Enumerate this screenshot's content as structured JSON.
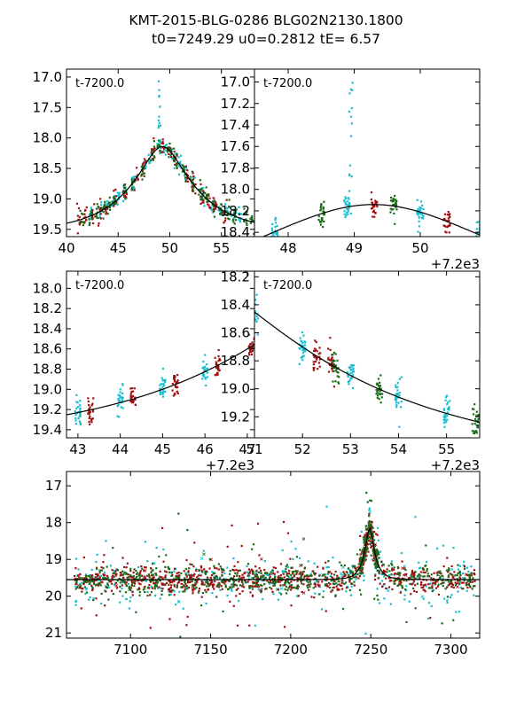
{
  "title_line1": "KMT-2015-BLG-0286 BLG02N2130.1800",
  "title_line2": "t0=7249.29 u0=0.2812 tE=   6.57",
  "colors": {
    "cyan": "#17becf",
    "dark_red": "#a01010",
    "dark_green": "#1a6b1a",
    "model": "#000000"
  },
  "model": {
    "t0": 7249.29,
    "u0": 0.2812,
    "tE": 6.57,
    "baseline": 19.55
  },
  "chart_data": [
    {
      "type": "scatter",
      "panel": "top-left",
      "annotation": "t-7200.0",
      "offset_label": "",
      "xlim": [
        40.0,
        58.2
      ],
      "ylim": [
        16.87,
        19.62
      ],
      "y_inverted": true,
      "xticks": [
        40,
        45,
        50,
        55
      ],
      "xtick_labels": [
        "40",
        "45",
        "50",
        "55"
      ],
      "yticks": [
        17.0,
        17.5,
        18.0,
        18.5,
        19.0,
        19.5
      ],
      "ytick_labels": [
        "17.0",
        "17.5",
        "18.0",
        "18.5",
        "19.0",
        "19.5"
      ],
      "series": [
        {
          "name": "cyan",
          "x_range": [
            42.3,
            57.4
          ],
          "note": "peak cluster near 49 up to 17.0"
        },
        {
          "name": "dark_red",
          "x_range": [
            41.2,
            56.3
          ]
        },
        {
          "name": "dark_green",
          "x_range": [
            41.5,
            58.0
          ]
        },
        {
          "name": "model",
          "type": "line"
        }
      ]
    },
    {
      "type": "scatter",
      "panel": "top-right",
      "annotation": "t-7200.0",
      "offset_label": "+7.2e3",
      "xlim": [
        47.49,
        50.9
      ],
      "ylim": [
        16.88,
        18.44
      ],
      "y_inverted": true,
      "xticks": [
        48,
        49,
        50
      ],
      "xtick_labels": [
        "48",
        "49",
        "50"
      ],
      "yticks": [
        17.0,
        17.2,
        17.4,
        17.6,
        17.8,
        18.0,
        18.2,
        18.4
      ],
      "ytick_labels": [
        "17.0",
        "17.2",
        "17.4",
        "17.6",
        "17.8",
        "18.0",
        "18.2",
        "18.4"
      ],
      "series": [
        {
          "name": "cyan",
          "x_clusters": [
            47.8,
            48.9,
            50.0,
            50.9
          ]
        },
        {
          "name": "dark_red",
          "x_clusters": [
            49.3,
            50.4
          ]
        },
        {
          "name": "dark_green",
          "x_clusters": [
            48.5,
            49.6
          ]
        },
        {
          "name": "model",
          "type": "line"
        }
      ]
    },
    {
      "type": "scatter",
      "panel": "middle-left",
      "annotation": "t-7200.0",
      "offset_label": "+7.2e3",
      "xlim": [
        42.73,
        47.17
      ],
      "ylim": [
        17.83,
        19.48
      ],
      "y_inverted": true,
      "xticks": [
        43,
        44,
        45,
        46,
        47
      ],
      "xtick_labels": [
        "43",
        "44",
        "45",
        "46",
        "47"
      ],
      "yticks": [
        18.0,
        18.2,
        18.4,
        18.6,
        18.8,
        19.0,
        19.2,
        19.4
      ],
      "ytick_labels": [
        "18.0",
        "18.2",
        "18.4",
        "18.6",
        "18.8",
        "19.0",
        "19.2",
        "19.4"
      ],
      "series": [
        {
          "name": "cyan",
          "x_clusters": [
            43.0,
            44.0,
            45.0,
            46.0
          ]
        },
        {
          "name": "dark_red",
          "x_clusters": [
            43.3,
            44.3,
            45.3,
            46.3,
            47.1
          ]
        },
        {
          "name": "model",
          "type": "line"
        }
      ]
    },
    {
      "type": "scatter",
      "panel": "middle-right",
      "annotation": "t-7200.0",
      "offset_label": "+7.2e3",
      "xlim": [
        51.0,
        55.69
      ],
      "ylim": [
        18.16,
        19.35
      ],
      "y_inverted": true,
      "xticks": [
        51,
        52,
        53,
        54,
        55
      ],
      "xtick_labels": [
        "51",
        "52",
        "53",
        "54",
        "55"
      ],
      "yticks": [
        18.2,
        18.4,
        18.6,
        18.8,
        19.0,
        19.2
      ],
      "ytick_labels": [
        "18.2",
        "18.4",
        "18.6",
        "18.8",
        "19.0",
        "19.2"
      ],
      "series": [
        {
          "name": "cyan",
          "x_clusters": [
            51.0,
            52.0,
            53.0,
            54.0,
            55.0
          ]
        },
        {
          "name": "dark_red",
          "x_clusters": [
            52.3,
            52.6
          ]
        },
        {
          "name": "dark_green",
          "x_clusters": [
            52.7,
            53.6,
            55.6
          ]
        },
        {
          "name": "model",
          "type": "line"
        }
      ]
    },
    {
      "type": "scatter",
      "panel": "bottom",
      "annotation": "",
      "offset_label": "",
      "xlim": [
        7060,
        7318
      ],
      "ylim": [
        16.61,
        21.14
      ],
      "y_inverted": true,
      "xticks": [
        7100,
        7150,
        7200,
        7250,
        7300
      ],
      "xtick_labels": [
        "7100",
        "7150",
        "7200",
        "7250",
        "7300"
      ],
      "yticks": [
        17,
        18,
        19,
        20,
        21
      ],
      "ytick_labels": [
        "17",
        "18",
        "19",
        "20",
        "21"
      ],
      "series": [
        {
          "name": "cyan",
          "x_range": [
            7060,
            7318
          ]
        },
        {
          "name": "dark_red",
          "x_range": [
            7060,
            7318
          ]
        },
        {
          "name": "dark_green",
          "x_range": [
            7060,
            7318
          ]
        },
        {
          "name": "model",
          "type": "line"
        }
      ]
    }
  ]
}
